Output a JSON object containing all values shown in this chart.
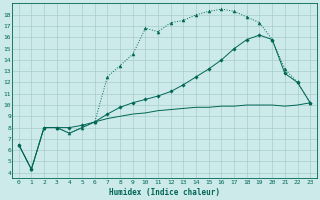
{
  "bg_color": "#cceaea",
  "grid_color": "#aacccc",
  "line_color": "#006655",
  "xlabel": "Humidex (Indice chaleur)",
  "xlim": [
    -0.5,
    23.5
  ],
  "ylim": [
    3.5,
    19.0
  ],
  "xticks": [
    0,
    1,
    2,
    3,
    4,
    5,
    6,
    7,
    8,
    9,
    10,
    11,
    12,
    13,
    14,
    15,
    16,
    17,
    18,
    19,
    20,
    21,
    22,
    23
  ],
  "yticks": [
    4,
    5,
    6,
    7,
    8,
    9,
    10,
    11,
    12,
    13,
    14,
    15,
    16,
    17,
    18
  ],
  "line1_x": [
    0,
    1,
    2,
    3,
    4,
    5,
    6,
    7,
    8,
    9,
    10,
    11,
    12,
    13,
    14,
    15,
    16,
    17,
    18,
    19,
    20,
    21,
    22,
    23
  ],
  "line1_y": [
    6.5,
    4.3,
    8.0,
    8.0,
    8.0,
    8.2,
    8.5,
    9.2,
    9.8,
    10.2,
    10.5,
    10.8,
    11.2,
    11.8,
    12.5,
    13.2,
    14.0,
    15.0,
    15.8,
    16.2,
    15.8,
    12.8,
    12.0,
    10.2
  ],
  "line2_x": [
    0,
    1,
    2,
    3,
    4,
    5,
    6,
    7,
    8,
    9,
    10,
    11,
    12,
    13,
    14,
    15,
    16,
    17,
    18,
    19,
    20,
    21,
    22,
    23
  ],
  "line2_y": [
    6.5,
    4.3,
    8.0,
    8.0,
    7.5,
    8.0,
    8.5,
    12.5,
    13.5,
    14.5,
    16.8,
    16.5,
    17.3,
    17.5,
    18.0,
    18.3,
    18.5,
    18.3,
    17.8,
    17.3,
    15.8,
    13.2,
    12.0,
    10.2
  ],
  "line3_x": [
    0,
    1,
    2,
    3,
    4,
    5,
    6,
    7,
    8,
    9,
    10,
    11,
    12,
    13,
    14,
    15,
    16,
    17,
    18,
    19,
    20,
    21,
    22,
    23
  ],
  "line3_y": [
    6.5,
    4.3,
    8.0,
    8.0,
    7.5,
    8.0,
    8.5,
    8.8,
    9.0,
    9.2,
    9.3,
    9.5,
    9.6,
    9.7,
    9.8,
    9.8,
    9.9,
    9.9,
    10.0,
    10.0,
    10.0,
    9.9,
    10.0,
    10.2
  ]
}
